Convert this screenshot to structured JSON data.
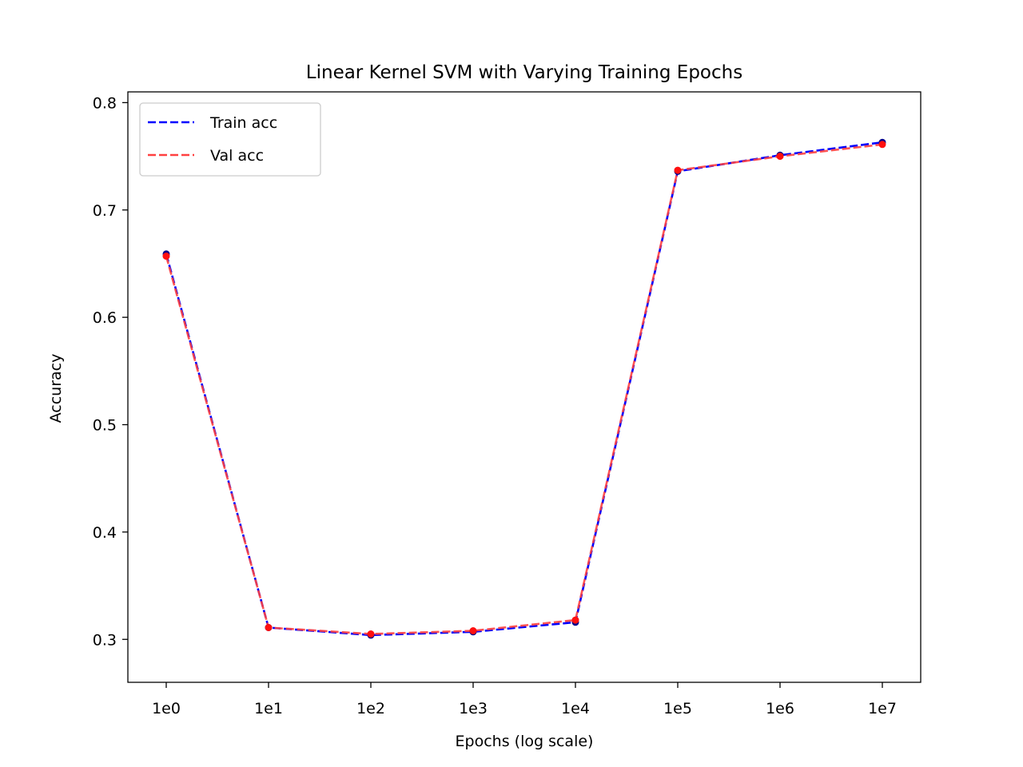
{
  "chart_data": {
    "type": "line",
    "title": "Linear Kernel SVM with Varying Training Epochs",
    "xlabel": "Epochs (log scale)",
    "ylabel": "Accuracy",
    "x_scale": "log",
    "x": [
      1,
      10,
      100,
      1000,
      10000,
      100000,
      1000000,
      10000000
    ],
    "x_tick_labels": [
      "1e0",
      "1e1",
      "1e2",
      "1e3",
      "1e4",
      "1e5",
      "1e6",
      "1e7"
    ],
    "y_ticks": [
      0.3,
      0.4,
      0.5,
      0.6,
      0.7,
      0.8
    ],
    "y_tick_labels": [
      "0.3",
      "0.4",
      "0.5",
      "0.6",
      "0.7",
      "0.8"
    ],
    "ylim": [
      0.26,
      0.81
    ],
    "grid": false,
    "legend_position": "top-left",
    "series": [
      {
        "name": "Train acc",
        "color": "#0000ff",
        "line_style": "dashed",
        "marker": "dot",
        "values": [
          0.659,
          0.311,
          0.304,
          0.307,
          0.316,
          0.736,
          0.751,
          0.763
        ]
      },
      {
        "name": "Val acc",
        "color": "#ff4040",
        "line_style": "dashed",
        "marker": "dot",
        "values": [
          0.657,
          0.311,
          0.305,
          0.308,
          0.318,
          0.737,
          0.75,
          0.761
        ]
      }
    ]
  }
}
